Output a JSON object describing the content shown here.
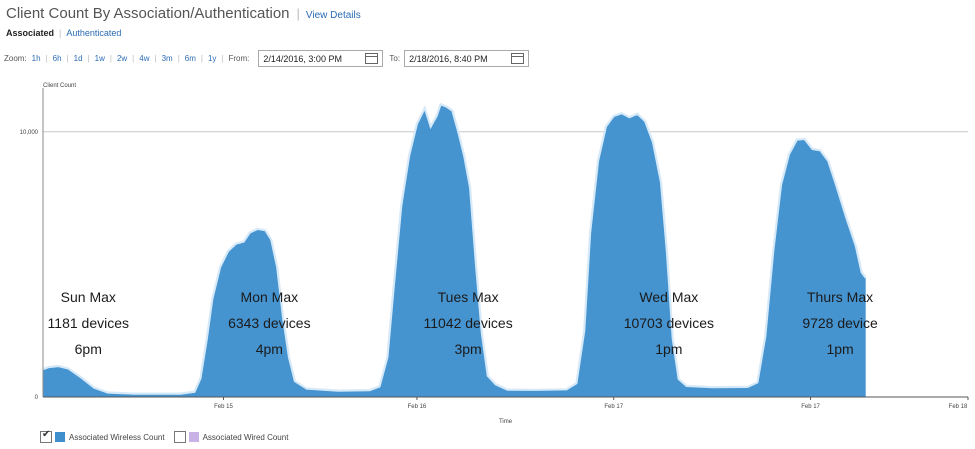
{
  "header": {
    "title": "Client Count By Association/Authentication",
    "view_details": "View Details"
  },
  "tabs": {
    "active": "Associated",
    "inactive": "Authenticated"
  },
  "zoom": {
    "label": "Zoom:",
    "options": [
      "1h",
      "6h",
      "1d",
      "1w",
      "2w",
      "4w",
      "3m",
      "6m",
      "1y"
    ],
    "from_label": "From:",
    "from_value": "2/14/2016, 3:00 PM",
    "to_label": "To:",
    "to_value": "2/18/2016, 8:40 PM"
  },
  "legend": {
    "wireless": {
      "label": "Associated Wireless Count",
      "color": "#3f8fcd",
      "checked": true
    },
    "wired": {
      "label": "Associated Wired Count",
      "color": "#c9b3e6",
      "checked": false
    }
  },
  "chart_data": {
    "type": "area",
    "ylabel": "Client Count",
    "xlabel": "Time",
    "y_ticks": [
      {
        "value": 0,
        "label": "0"
      },
      {
        "value": 10000,
        "label": "10,000"
      }
    ],
    "ylim": [
      0,
      11500
    ],
    "xlim": [
      0,
      4.7
    ],
    "x_ticks": [
      {
        "x": 0.917,
        "label": "Feb 15"
      },
      {
        "x": 1.9,
        "label": "Feb 16"
      },
      {
        "x": 2.9,
        "label": "Feb 17"
      },
      {
        "x": 3.9,
        "label": "Feb 17"
      },
      {
        "x": 4.7,
        "label": "Feb 18"
      }
    ],
    "grid": "horizontal",
    "series": [
      {
        "name": "Associated Wireless Count",
        "color": "#3f8fcd",
        "points": [
          [
            0.0,
            1050
          ],
          [
            0.03,
            1130
          ],
          [
            0.08,
            1170
          ],
          [
            0.13,
            1070
          ],
          [
            0.19,
            760
          ],
          [
            0.26,
            350
          ],
          [
            0.33,
            170
          ],
          [
            0.46,
            130
          ],
          [
            0.7,
            130
          ],
          [
            0.77,
            200
          ],
          [
            0.8,
            700
          ],
          [
            0.83,
            2100
          ],
          [
            0.86,
            3700
          ],
          [
            0.9,
            4900
          ],
          [
            0.94,
            5500
          ],
          [
            0.98,
            5780
          ],
          [
            1.02,
            5860
          ],
          [
            1.05,
            6200
          ],
          [
            1.09,
            6340
          ],
          [
            1.13,
            6290
          ],
          [
            1.16,
            5930
          ],
          [
            1.19,
            4900
          ],
          [
            1.22,
            3000
          ],
          [
            1.25,
            1500
          ],
          [
            1.28,
            600
          ],
          [
            1.34,
            320
          ],
          [
            1.5,
            240
          ],
          [
            1.66,
            260
          ],
          [
            1.71,
            400
          ],
          [
            1.75,
            1500
          ],
          [
            1.78,
            4000
          ],
          [
            1.82,
            7200
          ],
          [
            1.86,
            9100
          ],
          [
            1.9,
            10300
          ],
          [
            1.94,
            10900
          ],
          [
            1.97,
            10200
          ],
          [
            2.0,
            10600
          ],
          [
            2.02,
            11040
          ],
          [
            2.05,
            10950
          ],
          [
            2.08,
            10800
          ],
          [
            2.11,
            10000
          ],
          [
            2.14,
            9100
          ],
          [
            2.17,
            7900
          ],
          [
            2.2,
            5000
          ],
          [
            2.23,
            2400
          ],
          [
            2.26,
            800
          ],
          [
            2.3,
            480
          ],
          [
            2.36,
            280
          ],
          [
            2.5,
            270
          ],
          [
            2.66,
            290
          ],
          [
            2.71,
            520
          ],
          [
            2.75,
            2500
          ],
          [
            2.78,
            6200
          ],
          [
            2.82,
            8900
          ],
          [
            2.86,
            10200
          ],
          [
            2.9,
            10600
          ],
          [
            2.94,
            10700
          ],
          [
            2.98,
            10550
          ],
          [
            3.02,
            10680
          ],
          [
            3.06,
            10400
          ],
          [
            3.1,
            9600
          ],
          [
            3.14,
            8100
          ],
          [
            3.17,
            5500
          ],
          [
            3.2,
            2200
          ],
          [
            3.23,
            680
          ],
          [
            3.27,
            420
          ],
          [
            3.4,
            370
          ],
          [
            3.58,
            380
          ],
          [
            3.63,
            550
          ],
          [
            3.67,
            2300
          ],
          [
            3.71,
            5500
          ],
          [
            3.75,
            8000
          ],
          [
            3.79,
            9150
          ],
          [
            3.83,
            9700
          ],
          [
            3.87,
            9730
          ],
          [
            3.91,
            9350
          ],
          [
            3.95,
            9300
          ],
          [
            3.99,
            8900
          ],
          [
            4.03,
            8000
          ],
          [
            4.08,
            6800
          ],
          [
            4.13,
            5700
          ],
          [
            4.16,
            4700
          ],
          [
            4.18,
            4500
          ]
        ]
      },
      {
        "name": "Associated Wired Count",
        "color": "#c9b3e6",
        "points": []
      }
    ],
    "annotations": [
      {
        "x": 0.23,
        "lines": [
          "Sun Max",
          "1181 devices",
          "6pm"
        ]
      },
      {
        "x": 1.15,
        "lines": [
          "Mon Max",
          "6343 devices",
          "4pm"
        ]
      },
      {
        "x": 2.16,
        "lines": [
          "Tues Max",
          "11042 devices",
          "3pm"
        ]
      },
      {
        "x": 3.18,
        "lines": [
          "Wed Max",
          "10703 devices",
          "1pm"
        ]
      },
      {
        "x": 4.05,
        "lines": [
          "Thurs Max",
          "9728 device",
          "1pm"
        ]
      }
    ]
  }
}
